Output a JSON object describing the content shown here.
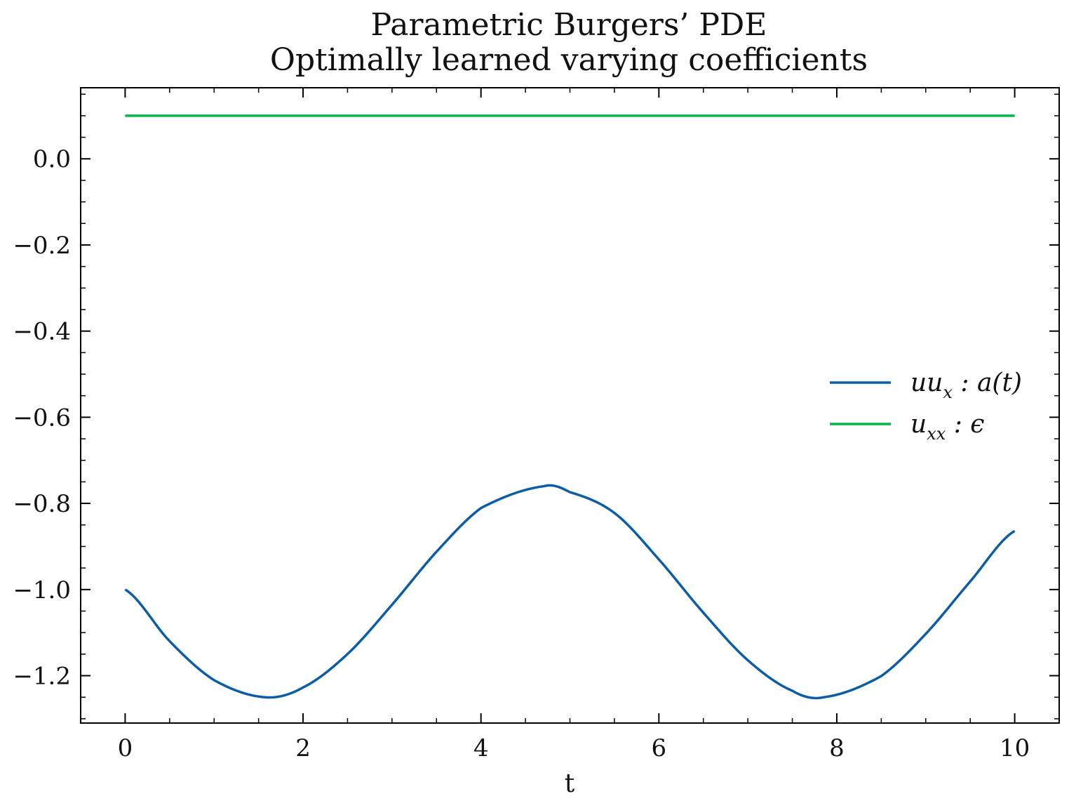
{
  "chart_data": {
    "type": "line",
    "title": "Parametric Burgers’ PDE",
    "subtitle": "Optimally learned varying coefficients",
    "xlabel": "t",
    "ylabel": "",
    "xlim": [
      -0.5,
      10.5
    ],
    "ylim": [
      -1.31,
      0.165
    ],
    "xticks": [
      0,
      2,
      4,
      6,
      8,
      10
    ],
    "xtick_labels": [
      "0",
      "2",
      "4",
      "6",
      "8",
      "10"
    ],
    "xminor_step": 0.5,
    "yticks": [
      0.0,
      -0.2,
      -0.4,
      -0.6,
      -0.8,
      -1.0,
      -1.2
    ],
    "ytick_labels": [
      "0.0",
      "−0.2",
      "−0.4",
      "−0.6",
      "−0.8",
      "−1.0",
      "−1.2"
    ],
    "yminor_step": 0.05,
    "grid": false,
    "legend_position": "center-right",
    "series": [
      {
        "legend_main": "uu",
        "legend_sub": "x",
        "legend_rest": " : a(t)",
        "color": "#0C5DA5",
        "x": [
          0.0,
          0.5,
          1.0,
          1.5708,
          2.0,
          2.5,
          3.0,
          3.5,
          4.0,
          4.7124,
          5.0,
          5.5,
          6.0,
          6.5,
          7.0,
          7.5,
          7.854,
          8.5,
          9.0,
          9.5,
          10.0
        ],
        "y": [
          -1.0,
          -1.1199,
          -1.2104,
          -1.25,
          -1.2273,
          -1.1496,
          -1.0353,
          -0.9123,
          -0.8108,
          -0.76,
          -0.774,
          -0.8222,
          -0.9301,
          -1.0538,
          -1.1642,
          -1.235,
          -1.25,
          -1.2009,
          -1.103,
          -0.9812,
          -0.864
        ]
      },
      {
        "legend_main": "u",
        "legend_sub": "xx",
        "legend_rest": " : ϵ",
        "color": "#00B945",
        "x": [
          0.0,
          10.0
        ],
        "y": [
          0.1,
          0.1
        ]
      }
    ]
  }
}
